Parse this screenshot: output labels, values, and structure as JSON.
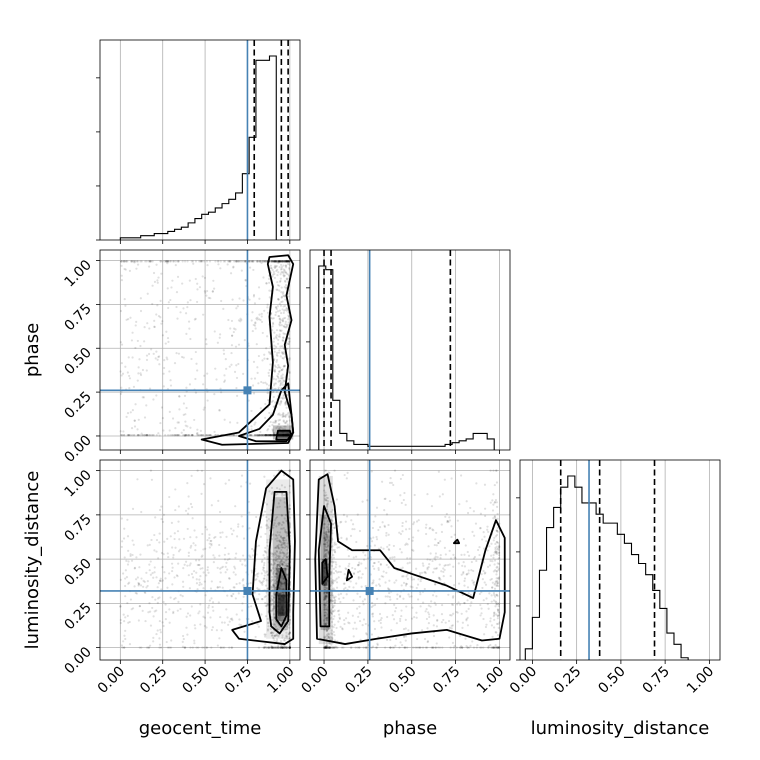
{
  "chart_data": {
    "type": "corner",
    "parameters": [
      "geocent_time",
      "phase",
      "luminosity_distance"
    ],
    "axis_labels": [
      "geocent_time",
      "phase",
      "luminosity_distance"
    ],
    "tick_labels": [
      "0.00",
      "0.25",
      "0.50",
      "0.75",
      "1.00"
    ],
    "range": [
      [
        -0.12,
        1.06
      ],
      [
        -0.08,
        1.06
      ],
      [
        -0.07,
        1.06
      ]
    ],
    "grid": true,
    "colors": {
      "truth": "#4682b4",
      "hist": "#000000",
      "quantile": "#000000",
      "samples": "#000000"
    },
    "truths": [
      0.75,
      0.26,
      0.32
    ],
    "quantiles": [
      [
        0.79,
        0.95,
        0.99
      ],
      [
        0.0,
        0.04,
        0.72
      ],
      [
        0.16,
        0.38,
        0.69
      ]
    ],
    "marginals": [
      {
        "parameter": "geocent_time",
        "bin_edges_start": 0.0,
        "bin_width": 0.04,
        "counts": [
          0.01,
          0.01,
          0.01,
          0.02,
          0.02,
          0.03,
          0.03,
          0.04,
          0.05,
          0.06,
          0.08,
          0.1,
          0.12,
          0.13,
          0.15,
          0.17,
          0.19,
          0.22,
          0.31,
          0.48,
          0.84,
          0.84,
          0.86
        ]
      },
      {
        "parameter": "phase",
        "bin_edges_start": -0.03,
        "bin_width": 0.04,
        "counts": [
          1.0,
          0.98,
          0.27,
          0.09,
          0.05,
          0.03,
          0.03,
          0.02,
          0.02,
          0.02,
          0.02,
          0.02,
          0.02,
          0.02,
          0.02,
          0.02,
          0.02,
          0.02,
          0.03,
          0.04,
          0.05,
          0.06,
          0.09,
          0.09,
          0.06
        ]
      },
      {
        "parameter": "luminosity_distance",
        "bin_edges_start": -0.04,
        "bin_width": 0.04,
        "counts": [
          0.05,
          0.19,
          0.4,
          0.59,
          0.68,
          0.77,
          0.82,
          0.77,
          0.7,
          0.7,
          0.65,
          0.61,
          0.61,
          0.56,
          0.52,
          0.47,
          0.43,
          0.38,
          0.31,
          0.23,
          0.12,
          0.07,
          0.01
        ]
      }
    ],
    "pairs": [
      {
        "x": "geocent_time",
        "y": "phase"
      },
      {
        "x": "geocent_time",
        "y": "luminosity_distance"
      },
      {
        "x": "phase",
        "y": "luminosity_distance"
      }
    ]
  }
}
